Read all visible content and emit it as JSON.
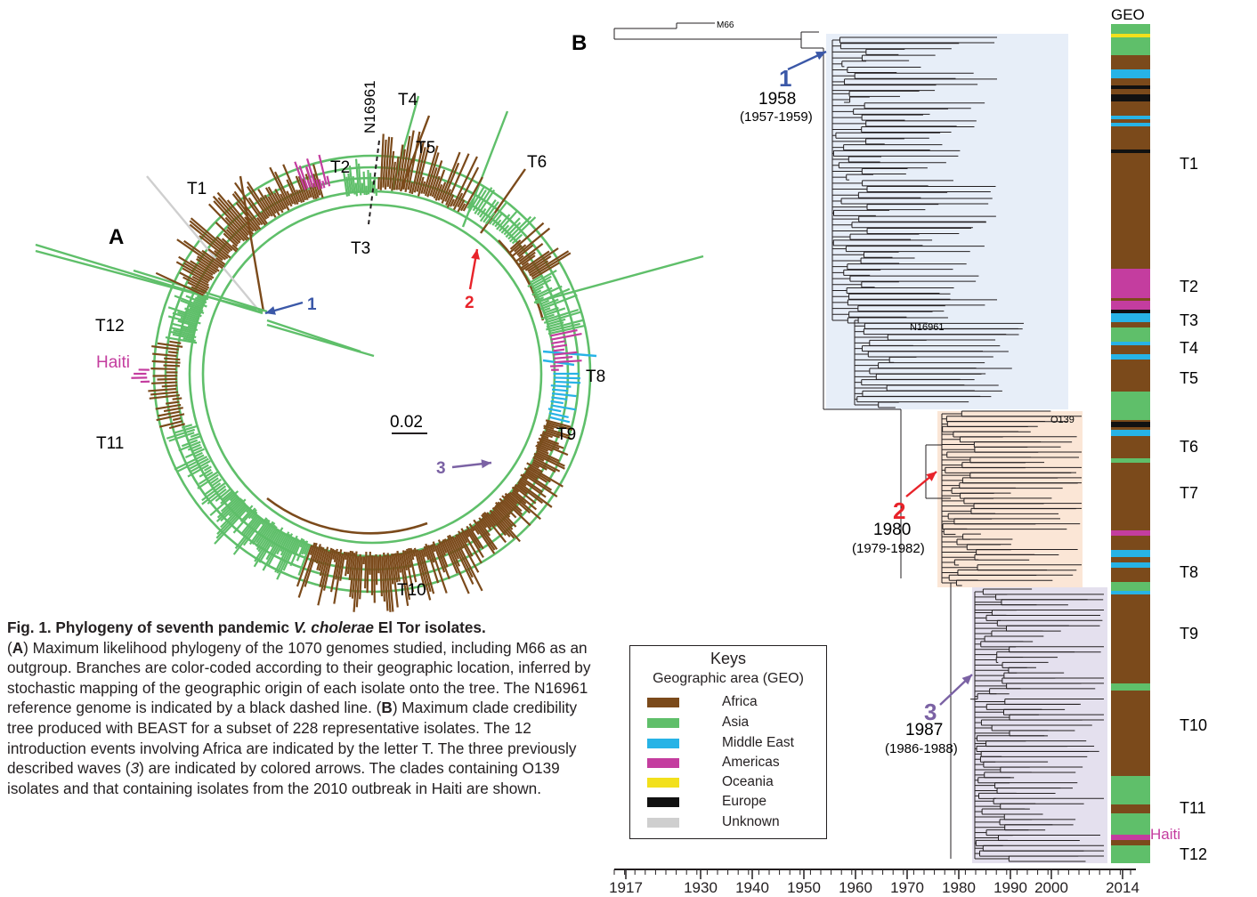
{
  "colors": {
    "africa": "#7b4a1b",
    "asia": "#5fbf6a",
    "middle_east": "#27b3e6",
    "americas": "#c43d9f",
    "oceania": "#f2e01c",
    "europe": "#111111",
    "unknown": "#cfcfcf",
    "blue_arrow": "#3b58a8",
    "red_arrow": "#e8232a",
    "purple_arrow": "#7b62a4",
    "clade1_box": "#e7eef8",
    "o139_box": "#fbe6d6",
    "clade3_box": "#e4e0ee",
    "haiti_label": "#c43d9f"
  },
  "panel_a": {
    "label": "A",
    "scale": "0.02",
    "n16961": "N16961",
    "tlabels": [
      "T1",
      "T2",
      "T3",
      "T4",
      "T5",
      "T6",
      "T8",
      "T9",
      "T10",
      "T11",
      "T12"
    ],
    "haiti": "Haiti",
    "arrows": [
      "1",
      "2",
      "3"
    ]
  },
  "panel_b": {
    "label": "B",
    "outgroup": "M66",
    "n16961": "N16961",
    "o139": "O139",
    "geo_title": "GEO",
    "haiti": "Haiti",
    "events": [
      {
        "num": "1",
        "year": "1958",
        "range": "(1957-1959)"
      },
      {
        "num": "2",
        "year": "1980",
        "range": "(1979-1982)"
      },
      {
        "num": "3",
        "year": "1987",
        "range": "(1986-1988)"
      }
    ],
    "tlabels": [
      "T1",
      "T2",
      "T3",
      "T4",
      "T5",
      "T6",
      "T7",
      "T8",
      "T9",
      "T10",
      "T11",
      "T12"
    ],
    "axis_ticks": [
      "1917",
      "1930",
      "1940",
      "1950",
      "1960",
      "1970",
      "1980",
      "1990",
      "2000",
      "2014"
    ]
  },
  "legend": {
    "title": "Keys",
    "subtitle": "Geographic area (GEO)",
    "items": [
      {
        "label": "Africa",
        "color": "#7b4a1b"
      },
      {
        "label": "Asia",
        "color": "#5fbf6a"
      },
      {
        "label": "Middle East",
        "color": "#27b3e6"
      },
      {
        "label": "Americas",
        "color": "#c43d9f"
      },
      {
        "label": "Oceania",
        "color": "#f2e01c"
      },
      {
        "label": "Europe",
        "color": "#111111"
      },
      {
        "label": "Unknown",
        "color": "#cfcfcf"
      }
    ]
  },
  "caption": {
    "title": "Fig. 1. Phylogeny of seventh pandemic ",
    "title_italic": "V. cholerae",
    "title_end": " El Tor isolates.",
    "p1": "(",
    "a": "A",
    "p2": ") Maximum likelihood phylogeny of the 1070 genomes studied, including M66 as an outgroup. Branches are color-coded according to their geographic location, inferred by stochastic mapping of the geographic origin of each isolate onto the tree. The N16961 reference genome is indicated by a black dashed line. (",
    "b": "B",
    "p3": ") Maximum clade credibility tree produced with BEAST for a subset of 228 representative isolates. The 12 introduction events involving Africa are indicated by the letter T. The three previously described waves (",
    "ref": "3",
    "p4": ") are indicated by colored arrows. The clades containing O139 isolates and that containing isolates from the 2010 outbreak in Haiti are shown."
  }
}
